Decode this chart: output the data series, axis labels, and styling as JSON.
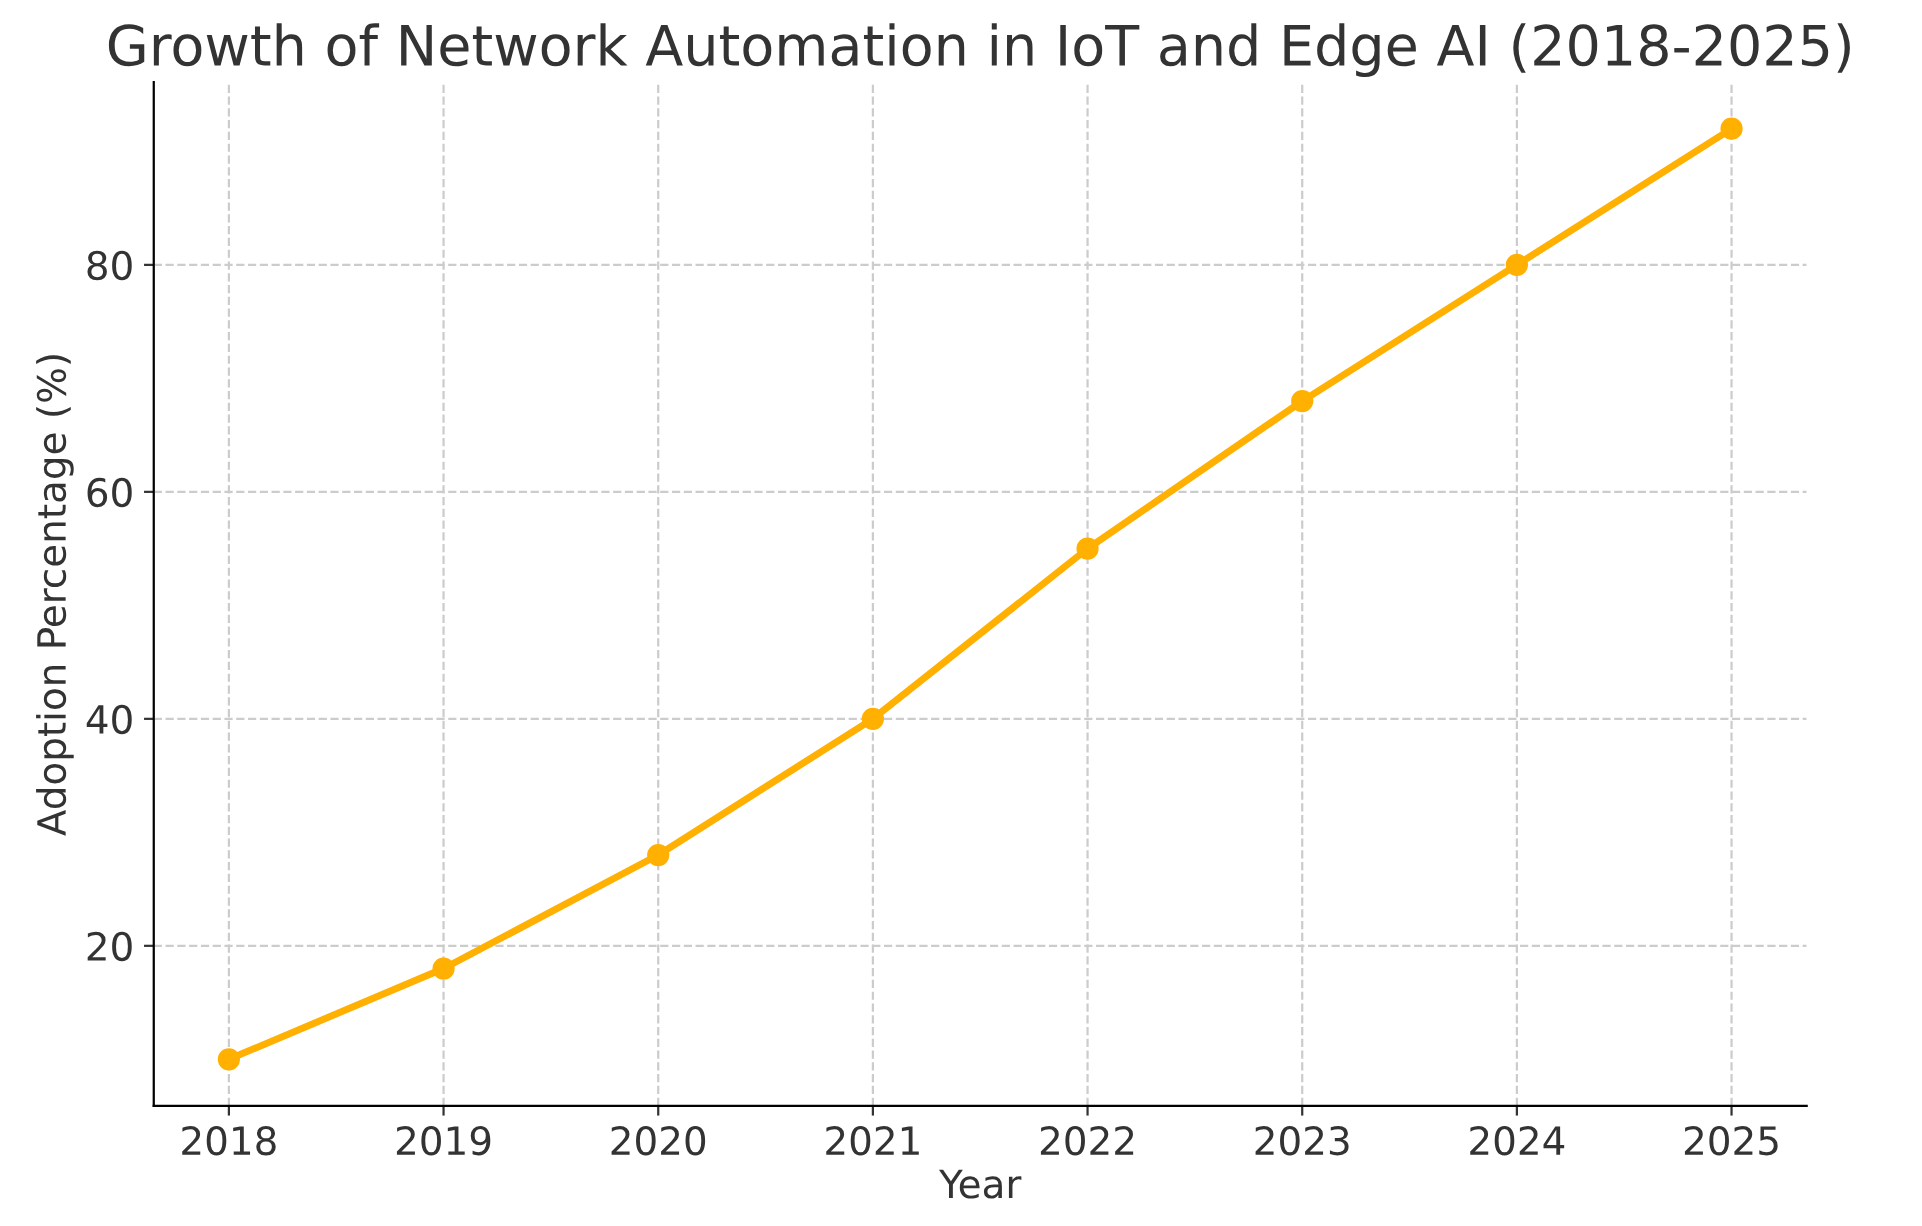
{
  "chart_data": {
    "type": "line",
    "title": "Growth of Network Automation in IoT and Edge AI (2018-2025)",
    "xlabel": "Year",
    "ylabel": "Adoption Percentage (%)",
    "x": [
      2018,
      2019,
      2020,
      2021,
      2022,
      2023,
      2024,
      2025
    ],
    "series": [
      {
        "color": "#ffb000",
        "values": [
          10,
          18,
          28,
          40,
          55,
          68,
          80,
          92
        ]
      }
    ],
    "xlim": [
      2017.65,
      2025.35
    ],
    "xticks": [
      2018,
      2019,
      2020,
      2021,
      2022,
      2023,
      2024,
      2025
    ],
    "ylim": [
      5.9,
      96.1
    ],
    "yticks": [
      20,
      40,
      60,
      80
    ],
    "grid": true,
    "marker": "circle",
    "line_style": "solid",
    "legend": false
  }
}
